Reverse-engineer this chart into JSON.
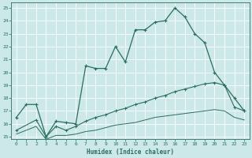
{
  "xlabel": "Humidex (Indice chaleur)",
  "xlim": [
    -0.5,
    23.5
  ],
  "ylim": [
    14.8,
    25.4
  ],
  "xticks": [
    0,
    1,
    2,
    3,
    4,
    5,
    6,
    7,
    8,
    9,
    10,
    11,
    12,
    13,
    14,
    15,
    16,
    17,
    18,
    19,
    20,
    21,
    22,
    23
  ],
  "yticks": [
    15,
    16,
    17,
    18,
    19,
    20,
    21,
    22,
    23,
    24,
    25
  ],
  "background_color": "#cce8e8",
  "grid_color": "#b8d8d8",
  "line_color": "#2a6e60",
  "line1_x": [
    0,
    1,
    2,
    3,
    4,
    5,
    6,
    7,
    8,
    9,
    10,
    11,
    12,
    13,
    14,
    15,
    16,
    17,
    18,
    19,
    20,
    21,
    22,
    23
  ],
  "line1_y": [
    16.5,
    17.5,
    17.5,
    15.0,
    16.2,
    16.1,
    16.0,
    20.5,
    20.3,
    20.3,
    22.0,
    20.8,
    23.3,
    23.3,
    23.9,
    24.0,
    25.0,
    24.3,
    23.0,
    22.3,
    20.0,
    19.0,
    18.0,
    17.0
  ],
  "line2_x": [
    0,
    2,
    3,
    4,
    5,
    6,
    7,
    8,
    9,
    10,
    11,
    12,
    13,
    14,
    15,
    16,
    17,
    18,
    19,
    20,
    21,
    22,
    23
  ],
  "line2_y": [
    15.5,
    16.3,
    15.0,
    15.8,
    15.5,
    15.8,
    16.2,
    16.5,
    16.7,
    17.0,
    17.2,
    17.5,
    17.7,
    18.0,
    18.2,
    18.5,
    18.7,
    18.9,
    19.1,
    19.2,
    19.0,
    17.3,
    17.0
  ],
  "line3_x": [
    0,
    2,
    3,
    4,
    5,
    6,
    7,
    8,
    9,
    10,
    11,
    12,
    13,
    14,
    15,
    16,
    17,
    18,
    19,
    20,
    21,
    22,
    23
  ],
  "line3_y": [
    15.2,
    15.8,
    14.8,
    15.1,
    15.1,
    15.2,
    15.4,
    15.5,
    15.7,
    15.9,
    16.0,
    16.1,
    16.3,
    16.5,
    16.6,
    16.7,
    16.8,
    16.9,
    17.0,
    17.1,
    17.0,
    16.5,
    16.3
  ]
}
